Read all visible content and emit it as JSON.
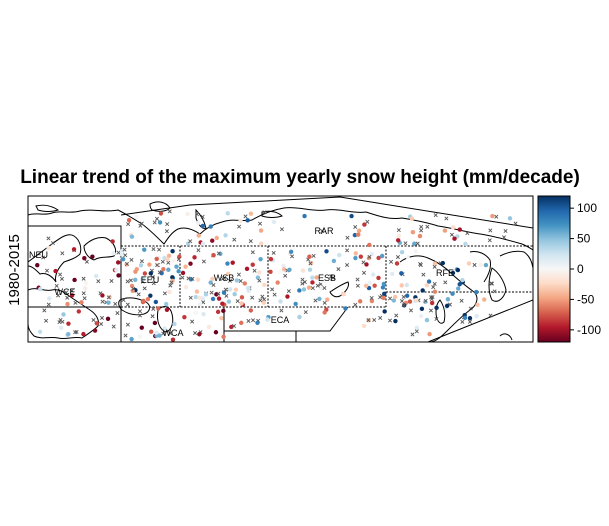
{
  "title": "Linear trend of the maximum yearly snow height (mm/decade)",
  "period_label": "1980-2015",
  "regions": [
    {
      "code": "RAR"
    },
    {
      "code": "NEU"
    },
    {
      "code": "WCE"
    },
    {
      "code": "EEU"
    },
    {
      "code": "WSB"
    },
    {
      "code": "ESB"
    },
    {
      "code": "RFE"
    },
    {
      "code": "ECA"
    },
    {
      "code": "WCA"
    }
  ],
  "colorbar": {
    "min": -120,
    "max": 120,
    "ticks": [
      {
        "value": 100,
        "label": "100"
      },
      {
        "value": 50,
        "label": "50"
      },
      {
        "value": 0,
        "label": "0"
      },
      {
        "value": -50,
        "label": "-50"
      },
      {
        "value": -100,
        "label": "-100"
      }
    ],
    "stops": [
      "#67001f",
      "#b2182b",
      "#d6604d",
      "#f4a582",
      "#fddbc7",
      "#f7f7f7",
      "#d1e5f0",
      "#92c5de",
      "#4393c3",
      "#2166ac",
      "#053061"
    ]
  },
  "legend_symbols": {
    "nonsignificant_marker": "cross"
  }
}
